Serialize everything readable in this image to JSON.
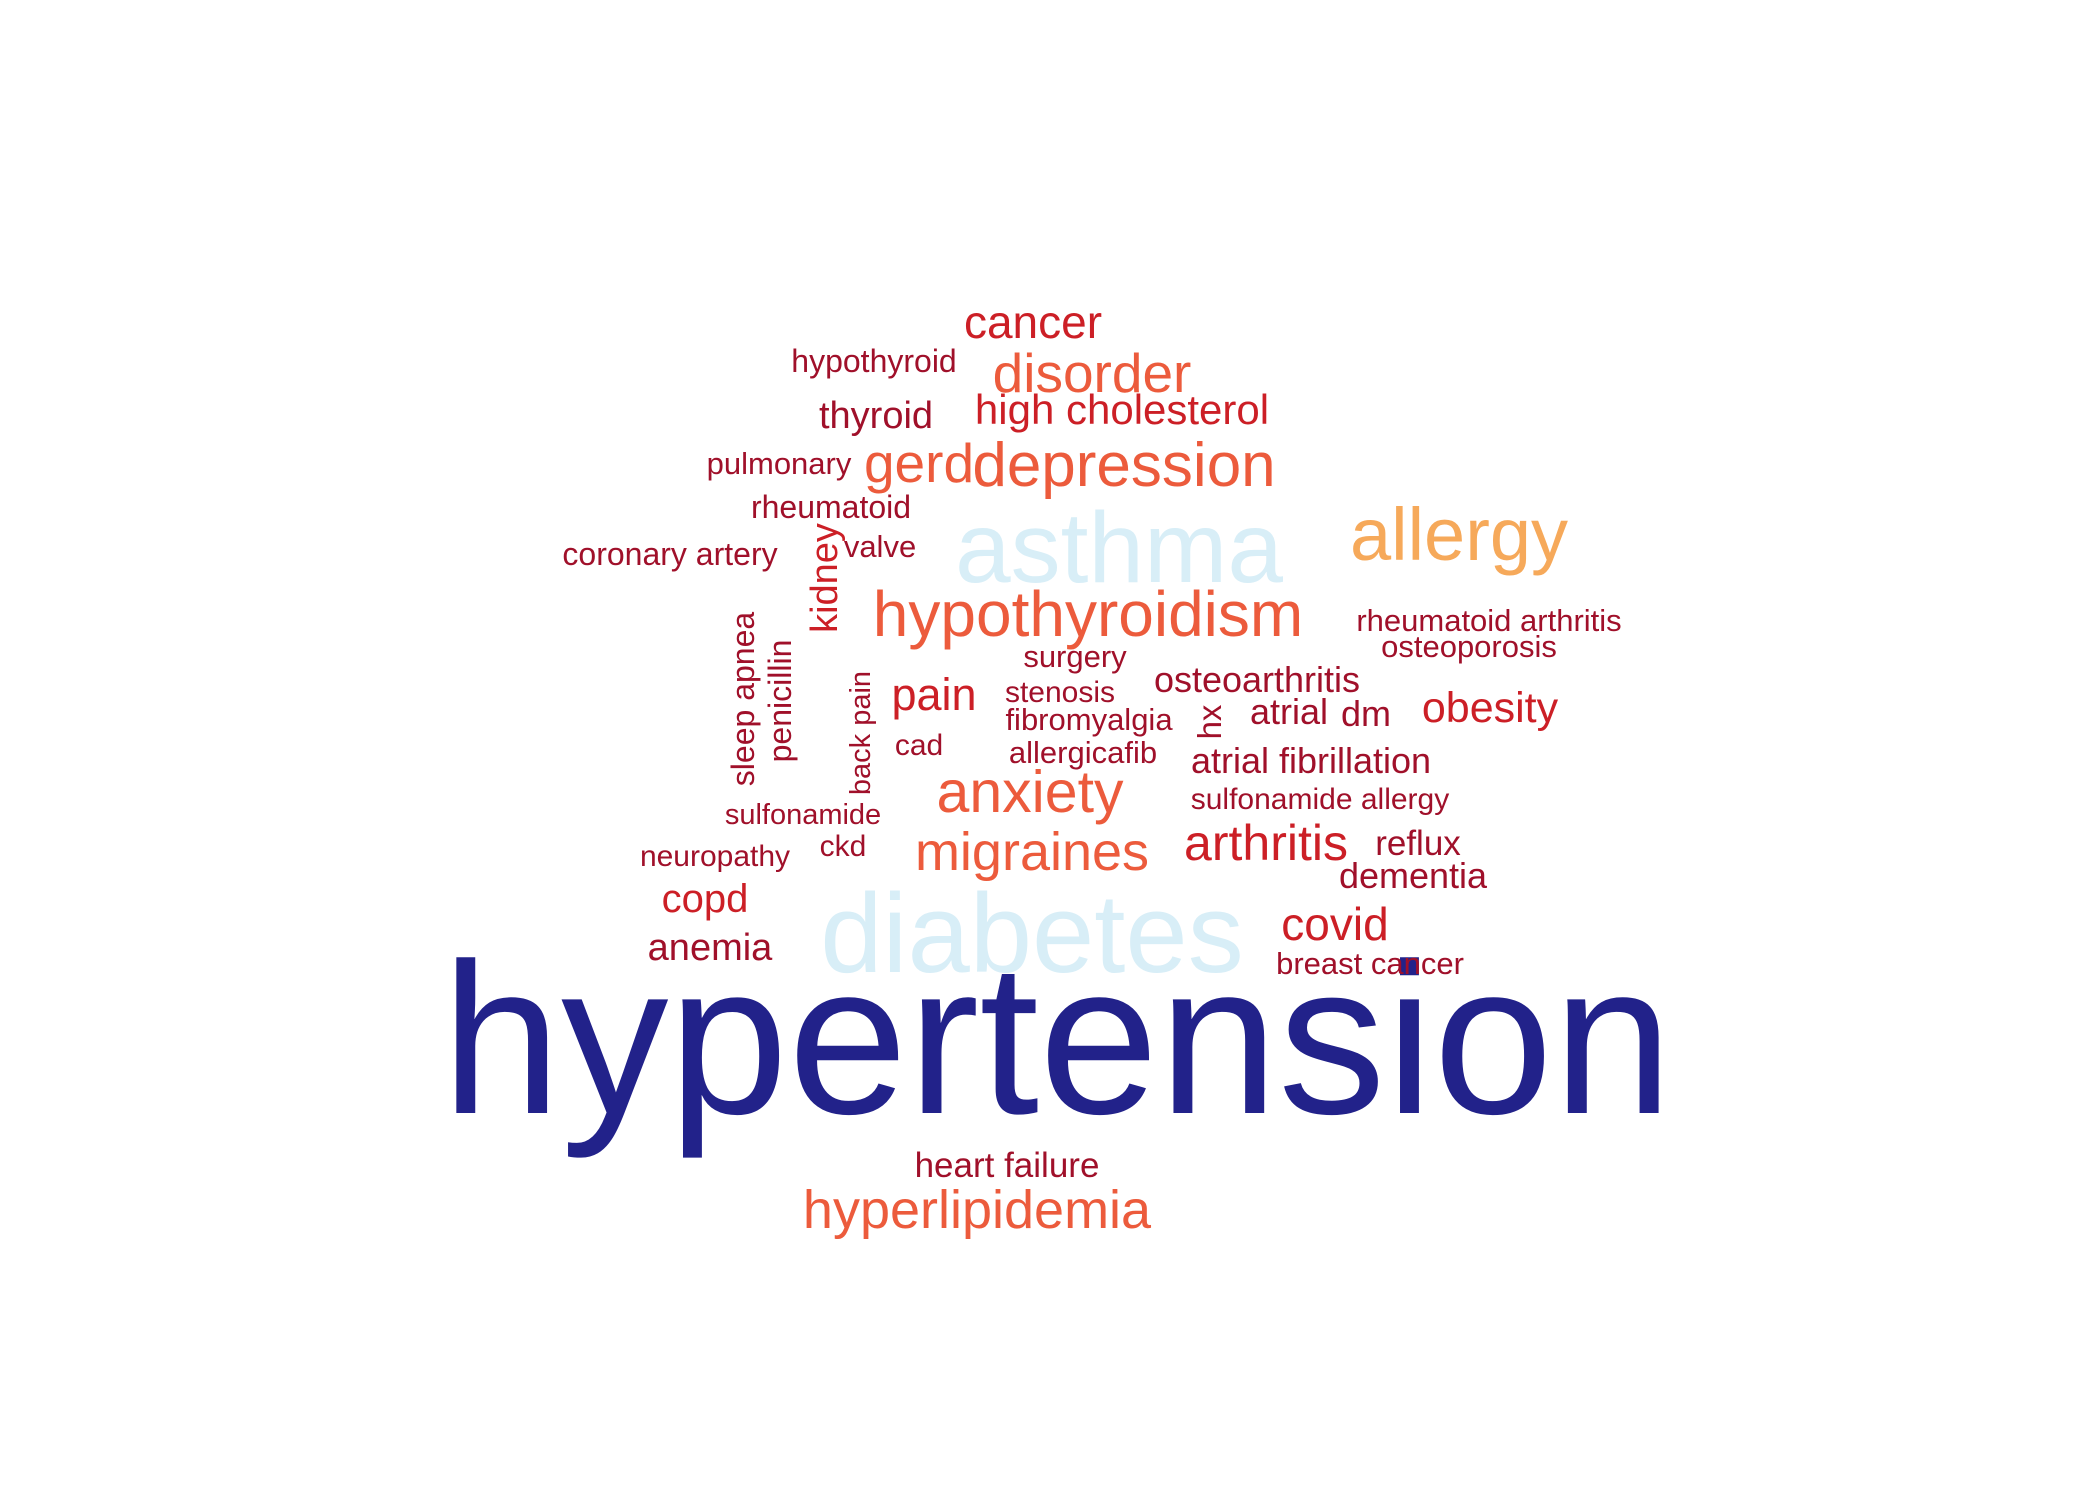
{
  "colors": {
    "navy": "#22228a",
    "light_blue": "#d8eef7",
    "peach": "#f6a95a",
    "orange": "#ec5b3c",
    "red": "#cc1f26",
    "dark_red": "#a0102a"
  },
  "words": [
    {
      "id": "hypertension",
      "text": "hypertension",
      "color": "navy"
    },
    {
      "id": "diabetes",
      "text": "diabetes",
      "color": "light_blue"
    },
    {
      "id": "asthma",
      "text": "asthma",
      "color": "light_blue"
    },
    {
      "id": "allergy",
      "text": "allergy",
      "color": "peach"
    },
    {
      "id": "hypothyroidism",
      "text": "hypothyroidism",
      "color": "orange"
    },
    {
      "id": "depression",
      "text": "depression",
      "color": "orange"
    },
    {
      "id": "anxiety",
      "text": "anxiety",
      "color": "orange"
    },
    {
      "id": "hyperlipidemia",
      "text": "hyperlipidemia",
      "color": "orange"
    },
    {
      "id": "migraines",
      "text": "migraines",
      "color": "orange"
    },
    {
      "id": "disorder",
      "text": "disorder",
      "color": "orange"
    },
    {
      "id": "gerd",
      "text": "gerd",
      "color": "orange"
    },
    {
      "id": "arthritis",
      "text": "arthritis",
      "color": "red"
    },
    {
      "id": "cancer",
      "text": "cancer",
      "color": "red"
    },
    {
      "id": "covid",
      "text": "covid",
      "color": "red"
    },
    {
      "id": "pain",
      "text": "pain",
      "color": "red"
    },
    {
      "id": "obesity",
      "text": "obesity",
      "color": "red"
    },
    {
      "id": "high-cholesterol",
      "text": "high cholesterol",
      "color": "red"
    },
    {
      "id": "copd",
      "text": "copd",
      "color": "red"
    },
    {
      "id": "kidney",
      "text": "kidney",
      "color": "red"
    },
    {
      "id": "thyroid",
      "text": "thyroid",
      "color": "dark_red"
    },
    {
      "id": "anemia",
      "text": "anemia",
      "color": "dark_red"
    },
    {
      "id": "dementia",
      "text": "dementia",
      "color": "dark_red"
    },
    {
      "id": "atrial-fibrillation",
      "text": "atrial fibrillation",
      "color": "dark_red"
    },
    {
      "id": "osteoarthritis",
      "text": "osteoarthritis",
      "color": "dark_red"
    },
    {
      "id": "atrial",
      "text": "atrial",
      "color": "dark_red"
    },
    {
      "id": "dm",
      "text": "dm",
      "color": "dark_red"
    },
    {
      "id": "reflux",
      "text": "reflux",
      "color": "dark_red"
    },
    {
      "id": "heart-failure",
      "text": "heart failure",
      "color": "dark_red"
    },
    {
      "id": "hypothyroid",
      "text": "hypothyroid",
      "color": "dark_red"
    },
    {
      "id": "pulmonary",
      "text": "pulmonary",
      "color": "dark_red"
    },
    {
      "id": "rheumatoid",
      "text": "rheumatoid",
      "color": "dark_red"
    },
    {
      "id": "coronary-artery",
      "text": "coronary artery",
      "color": "dark_red"
    },
    {
      "id": "valve",
      "text": "valve",
      "color": "dark_red"
    },
    {
      "id": "rheumatoid-arthritis",
      "text": "rheumatoid arthritis",
      "color": "dark_red"
    },
    {
      "id": "osteoporosis",
      "text": "osteoporosis",
      "color": "dark_red"
    },
    {
      "id": "surgery",
      "text": "surgery",
      "color": "dark_red"
    },
    {
      "id": "stenosis",
      "text": "stenosis",
      "color": "dark_red"
    },
    {
      "id": "fibromyalgia",
      "text": "fibromyalgia",
      "color": "dark_red"
    },
    {
      "id": "allergicafib",
      "text": "allergicafib",
      "color": "dark_red"
    },
    {
      "id": "cad",
      "text": "cad",
      "color": "dark_red"
    },
    {
      "id": "sulfonamide-allergy",
      "text": "sulfonamide allergy",
      "color": "dark_red"
    },
    {
      "id": "sulfonamide",
      "text": "sulfonamide",
      "color": "dark_red"
    },
    {
      "id": "neuropathy",
      "text": "neuropathy",
      "color": "dark_red"
    },
    {
      "id": "ckd",
      "text": "ckd",
      "color": "dark_red"
    },
    {
      "id": "breast-cancer",
      "text": "breast cancer",
      "color": "dark_red"
    },
    {
      "id": "sleep-apnea",
      "text": "sleep apnea",
      "color": "dark_red"
    },
    {
      "id": "penicillin",
      "text": "penicillin",
      "color": "dark_red"
    },
    {
      "id": "back-pain",
      "text": "back pain",
      "color": "dark_red"
    },
    {
      "id": "hx",
      "text": "hx",
      "color": "dark_red"
    }
  ]
}
